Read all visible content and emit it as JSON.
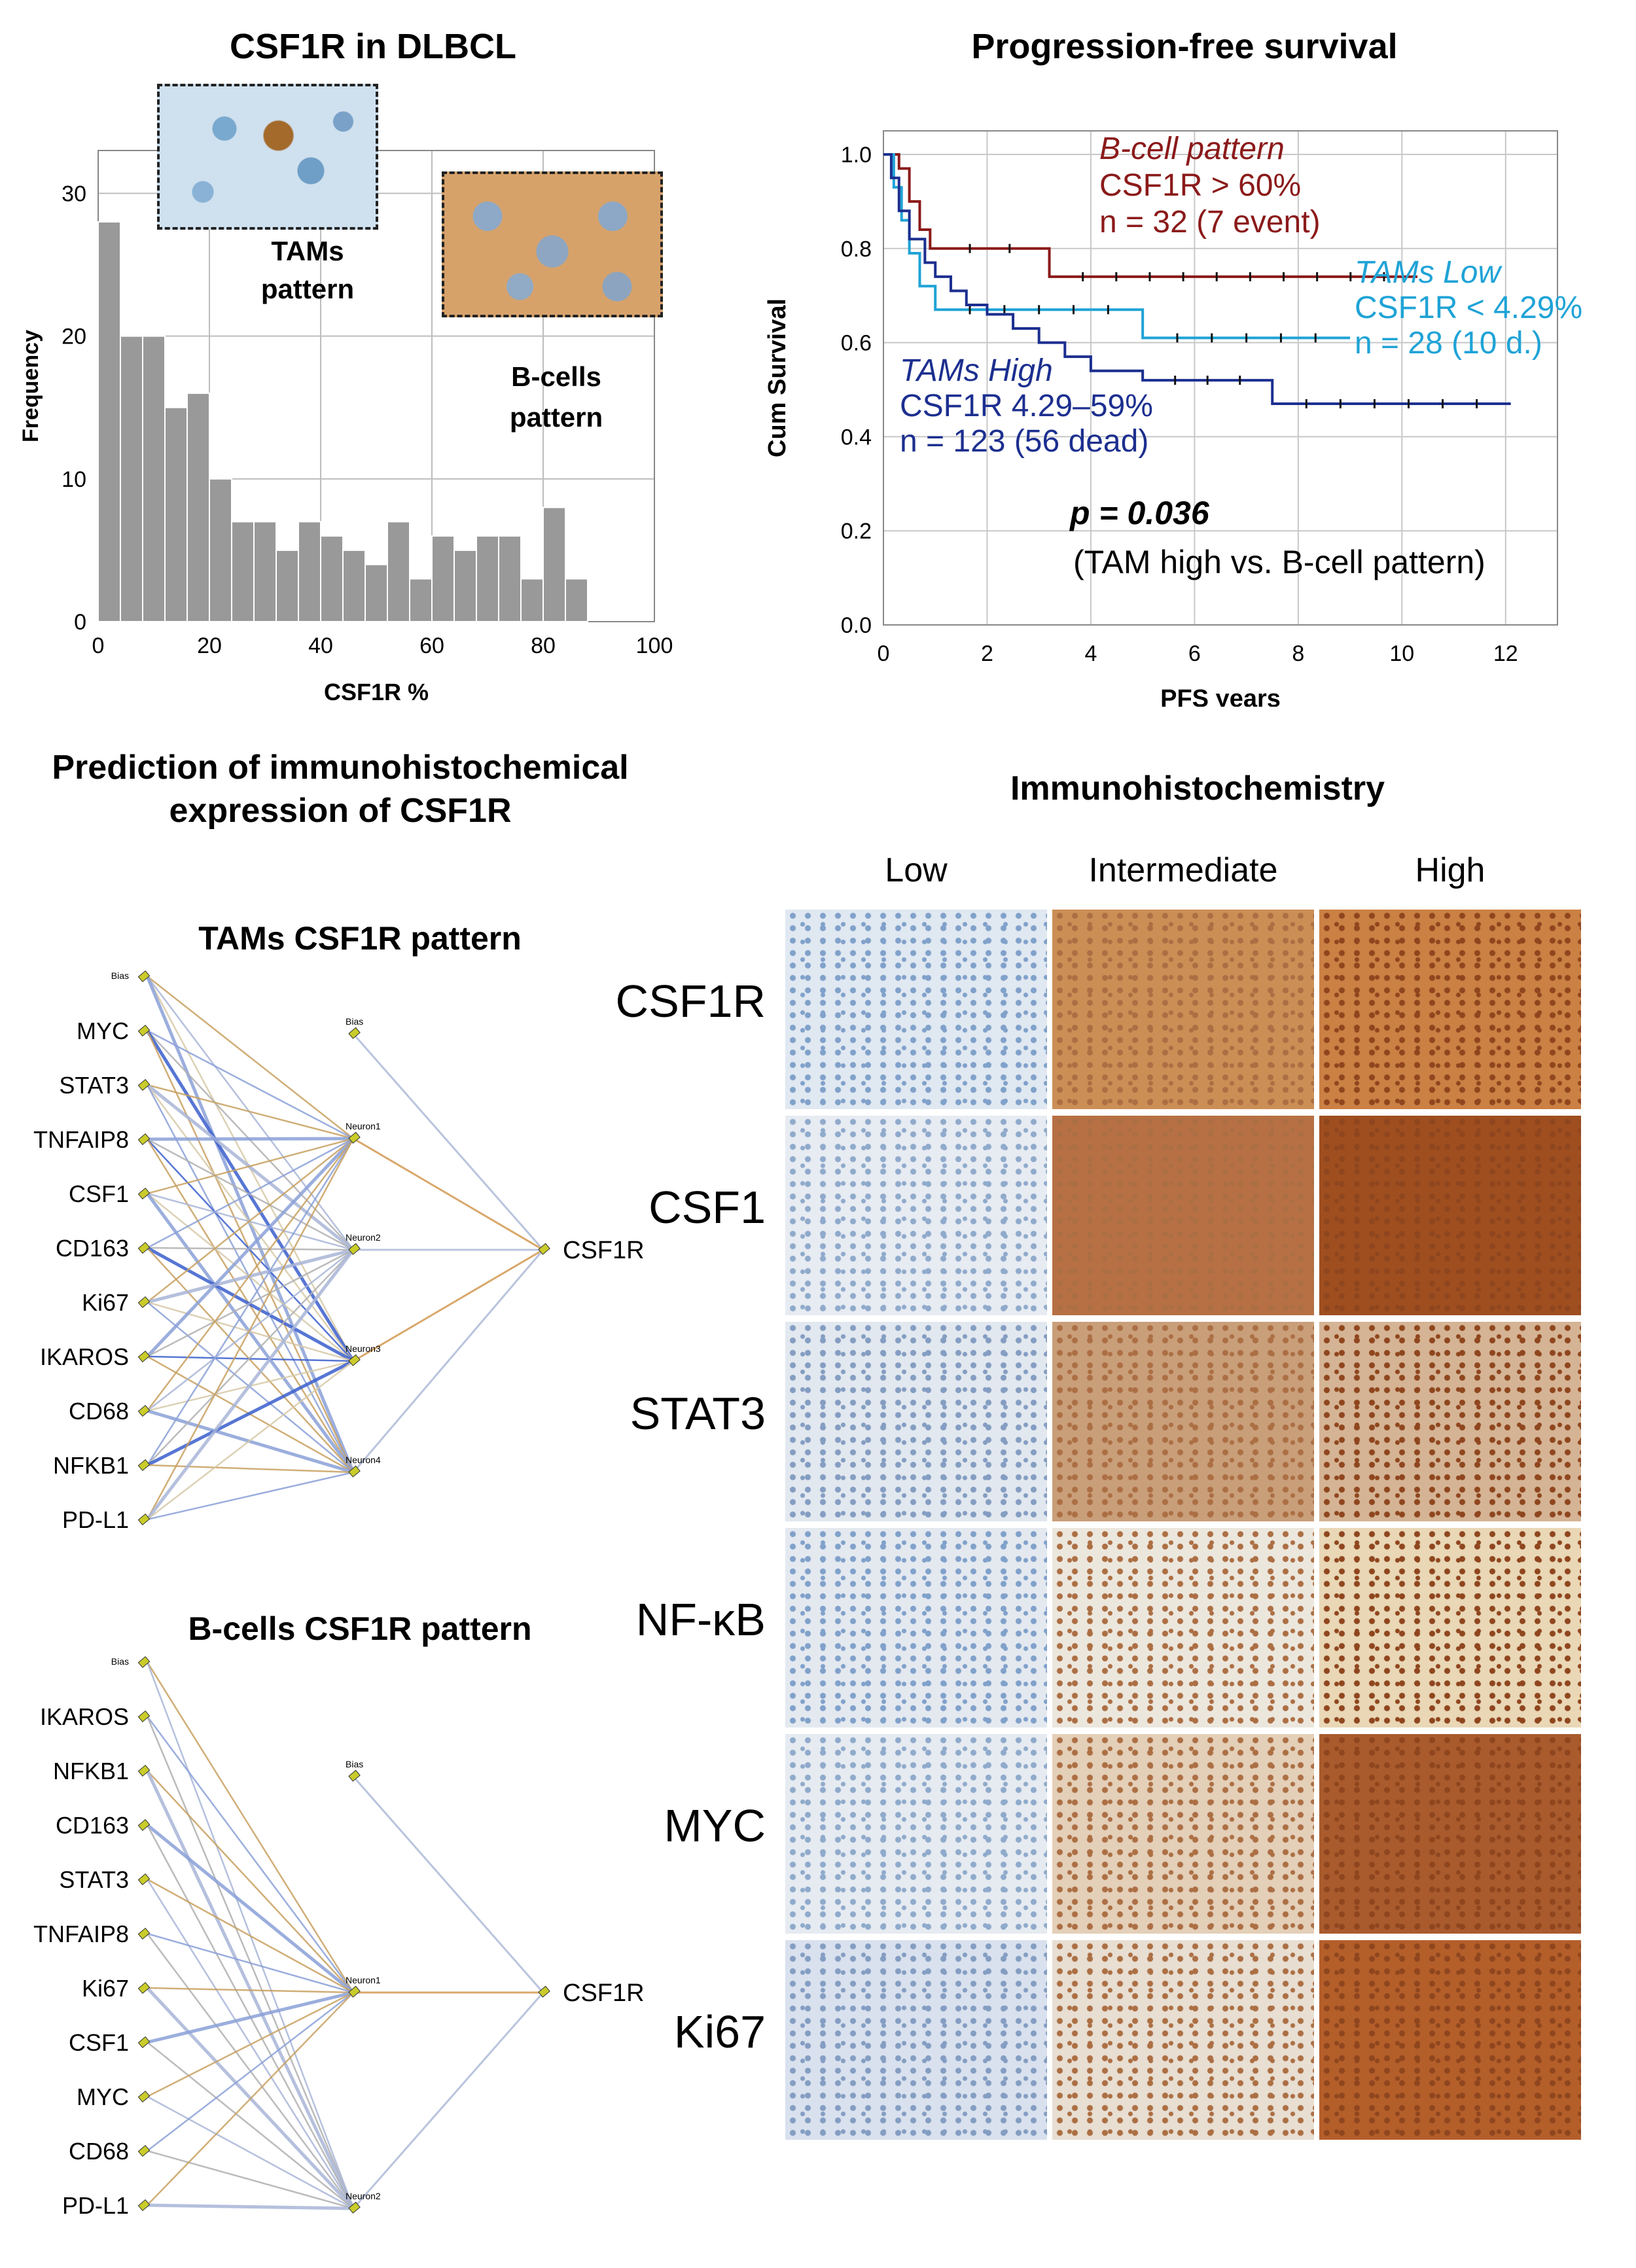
{
  "panel_a": {
    "title": "CSF1R in DLBCL",
    "inset_tams_label": "TAMs\npattern",
    "inset_bcells_label": "B-cells\npattern"
  },
  "panel_b": {
    "title": "Progression-free survival",
    "pvalue": "p = 0.036",
    "pvalue_note": "(TAM high vs. B-cell pattern)",
    "annotations": {
      "bcell": {
        "name": "B-cell pattern",
        "def": "CSF1R > 60%",
        "n": "n = 32 (7 event)",
        "color": "#8b1a1a"
      },
      "tams_low": {
        "name": "TAMs Low",
        "def": "CSF1R < 4.29%",
        "n": "n = 28 (10 d.)",
        "color": "#1fa3d6"
      },
      "tams_high": {
        "name": "TAMs High",
        "def": "CSF1R 4.29–59%",
        "n": "n = 123 (56 dead)",
        "color": "#1c2f8f"
      }
    }
  },
  "panel_c": {
    "title": "Prediction of immunohistochemical expression of CSF1R",
    "tams_title": "TAMs CSF1R pattern",
    "bcells_title": "B-cells CSF1R pattern",
    "tams_inputs": [
      "Bias",
      "MYC",
      "STAT3",
      "TNFAIP8",
      "CSF1",
      "CD163",
      "Ki67",
      "IKAROS",
      "CD68",
      "NFKB1",
      "PD-L1"
    ],
    "tams_hidden": [
      "Bias",
      "Neuron1",
      "Neuron2",
      "Neuron3",
      "Neuron4"
    ],
    "bcells_inputs": [
      "Bias",
      "IKAROS",
      "NFKB1",
      "CD163",
      "STAT3",
      "TNFAIP8",
      "Ki67",
      "CSF1",
      "MYC",
      "CD68",
      "PD-L1"
    ],
    "bcells_hidden": [
      "Bias",
      "Neuron1",
      "Neuron2"
    ],
    "output": "CSF1R"
  },
  "panel_d": {
    "title": "Immunohistochemistry",
    "columns": [
      "Low",
      "Intermediate",
      "High"
    ],
    "rows": [
      "CSF1R",
      "CSF1",
      "STAT3",
      "NF-κB",
      "MYC",
      "Ki67"
    ]
  },
  "chart_data": [
    {
      "type": "bar",
      "title": "CSF1R in DLBCL",
      "xlabel": "CSF1R %",
      "ylabel": "Frequency",
      "xlim": [
        0,
        100
      ],
      "ylim": [
        0,
        33
      ],
      "xticks": [
        0,
        20,
        40,
        60,
        80,
        100
      ],
      "yticks": [
        0,
        10,
        20,
        30
      ],
      "bin_width": 4,
      "bin_starts": [
        0,
        4,
        8,
        12,
        16,
        20,
        24,
        28,
        32,
        36,
        40,
        44,
        48,
        52,
        56,
        60,
        64,
        68,
        72,
        76,
        80,
        84
      ],
      "values": [
        28,
        20,
        20,
        15,
        16,
        10,
        7,
        7,
        5,
        7,
        6,
        5,
        4,
        7,
        3,
        6,
        5,
        6,
        6,
        3,
        8,
        3
      ],
      "color": "#999999"
    },
    {
      "type": "line",
      "title": "Progression-free survival",
      "xlabel": "PFS years",
      "ylabel": "Cum Survival",
      "xlim": [
        0,
        13
      ],
      "ylim": [
        0,
        1.05
      ],
      "xticks": [
        0,
        2,
        4,
        6,
        8,
        10,
        12
      ],
      "yticks": [
        0.0,
        0.2,
        0.4,
        0.6,
        0.8,
        1.0
      ],
      "ytick_labels": [
        "0.0",
        "0.2",
        "0.4",
        "0.6",
        "0.8",
        "1.0"
      ],
      "series": [
        {
          "name": "B-cell pattern",
          "color": "#8b1a1a",
          "x": [
            0,
            0.3,
            0.5,
            0.7,
            0.9,
            3.2,
            10.3
          ],
          "y": [
            1.0,
            0.97,
            0.9,
            0.84,
            0.8,
            0.74,
            0.74
          ]
        },
        {
          "name": "TAMs Low",
          "color": "#1fa3d6",
          "x": [
            0,
            0.2,
            0.35,
            0.5,
            0.7,
            1.0,
            5.0,
            9.0
          ],
          "y": [
            1.0,
            0.93,
            0.86,
            0.79,
            0.72,
            0.67,
            0.61,
            0.61
          ]
        },
        {
          "name": "TAMs High",
          "color": "#1c2f8f",
          "x": [
            0,
            0.15,
            0.3,
            0.5,
            0.8,
            1.0,
            1.3,
            1.6,
            2.0,
            2.5,
            3.0,
            3.5,
            4.0,
            5.0,
            7.5,
            12.1
          ],
          "y": [
            1.0,
            0.95,
            0.88,
            0.82,
            0.77,
            0.74,
            0.71,
            0.68,
            0.66,
            0.63,
            0.6,
            0.57,
            0.54,
            0.52,
            0.47,
            0.47
          ]
        }
      ]
    }
  ]
}
